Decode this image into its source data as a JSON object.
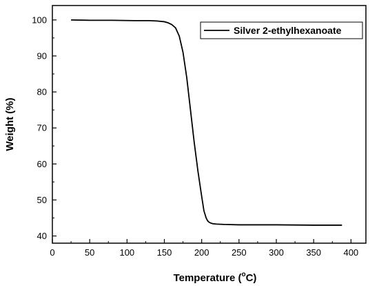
{
  "chart_data": {
    "type": "line",
    "xlabel_main": "Temperature (",
    "xlabel_sup": "o",
    "xlabel_end": "C)",
    "ylabel": "Weight (%)",
    "xlim": [
      0,
      420
    ],
    "ylim": [
      38,
      104
    ],
    "x_ticks": [
      0,
      50,
      100,
      150,
      200,
      250,
      300,
      350,
      400
    ],
    "y_ticks": [
      40,
      50,
      60,
      70,
      80,
      90,
      100
    ],
    "grid": false,
    "legend_position": "top-right",
    "series": [
      {
        "name": "Silver 2-ethylhexanoate",
        "color": "#000000",
        "x": [
          25,
          50,
          80,
          110,
          130,
          140,
          150,
          155,
          160,
          165,
          170,
          175,
          180,
          185,
          190,
          195,
          200,
          203,
          206,
          208,
          210,
          212,
          215,
          220,
          230,
          250,
          300,
          350,
          388
        ],
        "y": [
          100.0,
          99.9,
          99.9,
          99.8,
          99.8,
          99.7,
          99.5,
          99.2,
          98.7,
          97.8,
          95.5,
          91.0,
          84.0,
          75.0,
          66.0,
          58.0,
          51.0,
          47.0,
          45.0,
          44.2,
          43.8,
          43.6,
          43.4,
          43.3,
          43.2,
          43.1,
          43.1,
          43.0,
          43.0
        ]
      }
    ]
  }
}
